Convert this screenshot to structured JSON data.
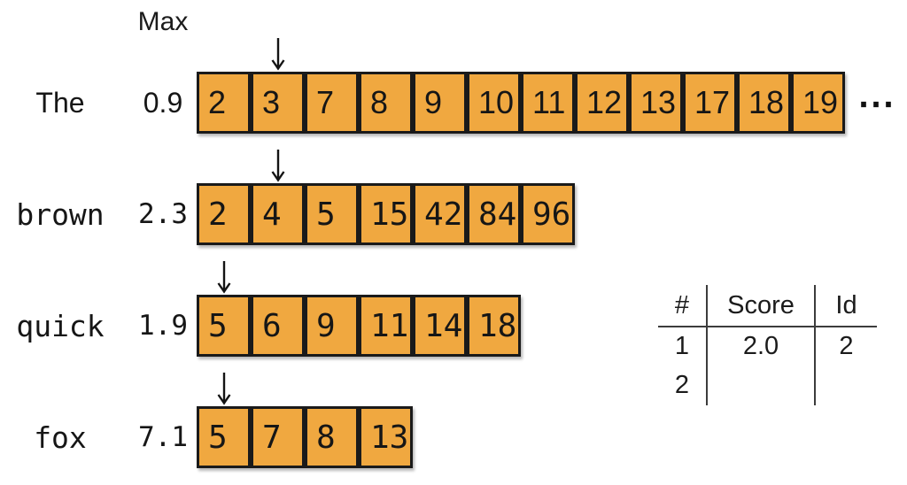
{
  "max_header_label": "Max",
  "ellipsis_glyph": "⋯",
  "colors": {
    "cell_fill": "#F0A840",
    "cell_border": "#1A1A1A",
    "table_line": "#3C3C3C"
  },
  "posting_lists": [
    {
      "term": "The",
      "max_score": "0.9",
      "cursor_index": 1,
      "truncated": true,
      "postings": [
        "2",
        "3",
        "7",
        "8",
        "9",
        "10",
        "11",
        "12",
        "13",
        "17",
        "18",
        "19"
      ]
    },
    {
      "term": "brown",
      "max_score": "2.3",
      "cursor_index": 1,
      "truncated": false,
      "postings": [
        "2",
        "4",
        "5",
        "15",
        "42",
        "84",
        "96"
      ]
    },
    {
      "term": "quick",
      "max_score": "1.9",
      "cursor_index": 0,
      "truncated": false,
      "postings": [
        "5",
        "6",
        "9",
        "11",
        "14",
        "18"
      ]
    },
    {
      "term": "fox",
      "max_score": "7.1",
      "cursor_index": 0,
      "truncated": false,
      "postings": [
        "5",
        "7",
        "8",
        "13"
      ]
    }
  ],
  "results_table": {
    "columns": [
      "#",
      "Score",
      "Id"
    ],
    "rows": [
      [
        "1",
        "2.0",
        "2"
      ],
      [
        "2",
        "",
        ""
      ]
    ]
  }
}
